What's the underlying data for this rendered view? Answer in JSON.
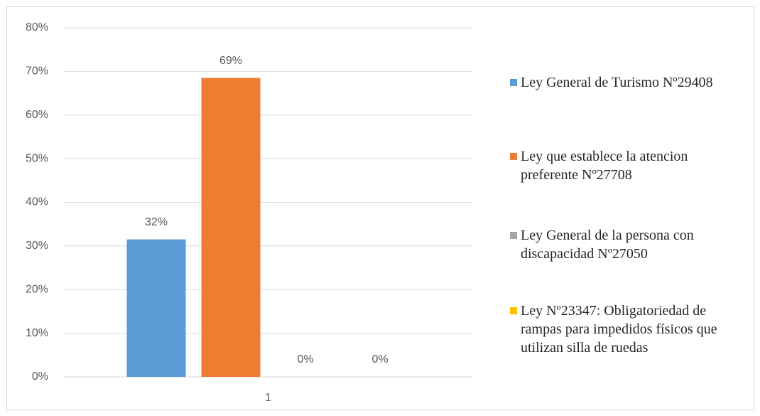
{
  "chart_data": {
    "type": "bar",
    "categories": [
      "1"
    ],
    "series": [
      {
        "name": "Ley General de Turismo Nº29408",
        "color": "#5b9bd5",
        "values": [
          31.5
        ],
        "value_labels": [
          "32%"
        ]
      },
      {
        "name": "Ley que establece la atencion preferente Nº27708",
        "color": "#ed7d31",
        "values": [
          68.5
        ],
        "value_labels": [
          "69%"
        ]
      },
      {
        "name": "Ley General de la persona con discapacidad Nº27050",
        "color": "#a5a5a5",
        "values": [
          0
        ],
        "value_labels": [
          "0%"
        ]
      },
      {
        "name": "Ley Nº23347: Obligatoriedad de rampas para impedidos físicos que utilizan silla de ruedas",
        "color": "#ffc000",
        "values": [
          0
        ],
        "value_labels": [
          "0%"
        ]
      }
    ],
    "ylim": [
      0,
      80
    ],
    "yticks": [
      {
        "value": 0,
        "label": "0%"
      },
      {
        "value": 10,
        "label": "10%"
      },
      {
        "value": 20,
        "label": "20%"
      },
      {
        "value": 30,
        "label": "30%"
      },
      {
        "value": 40,
        "label": "40%"
      },
      {
        "value": 50,
        "label": "50%"
      },
      {
        "value": 60,
        "label": "60%"
      },
      {
        "value": 70,
        "label": "70%"
      },
      {
        "value": 80,
        "label": "80%"
      }
    ],
    "grid": true,
    "legend": "right"
  }
}
